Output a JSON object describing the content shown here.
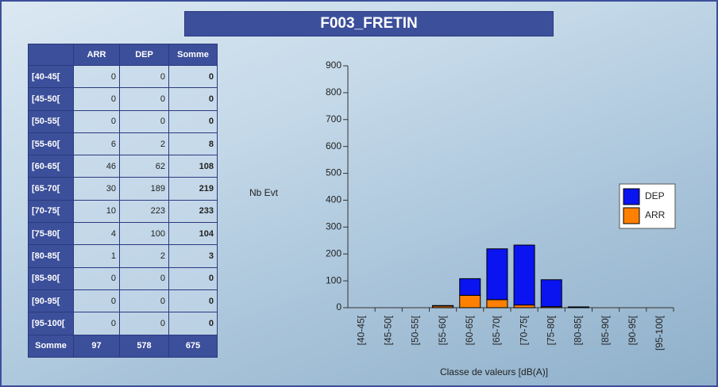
{
  "title": "F003_FRETIN",
  "table": {
    "columns": [
      "ARR",
      "DEP",
      "Somme"
    ],
    "rows": [
      {
        "label": "[40-45[",
        "values": [
          0,
          0,
          0
        ]
      },
      {
        "label": "[45-50[",
        "values": [
          0,
          0,
          0
        ]
      },
      {
        "label": "[50-55[",
        "values": [
          0,
          0,
          0
        ]
      },
      {
        "label": "[55-60[",
        "values": [
          6,
          2,
          8
        ]
      },
      {
        "label": "[60-65[",
        "values": [
          46,
          62,
          108
        ]
      },
      {
        "label": "[65-70[",
        "values": [
          30,
          189,
          219
        ]
      },
      {
        "label": "[70-75[",
        "values": [
          10,
          223,
          233
        ]
      },
      {
        "label": "[75-80[",
        "values": [
          4,
          100,
          104
        ]
      },
      {
        "label": "[80-85[",
        "values": [
          1,
          2,
          3
        ]
      },
      {
        "label": "[85-90[",
        "values": [
          0,
          0,
          0
        ]
      },
      {
        "label": "[90-95[",
        "values": [
          0,
          0,
          0
        ]
      },
      {
        "label": "[95-100[",
        "values": [
          0,
          0,
          0
        ]
      }
    ],
    "total": {
      "label": "Somme",
      "values": [
        97,
        578,
        675
      ]
    }
  },
  "chart_data": {
    "type": "stacked_bar",
    "y_label": "Nb Evt",
    "x_label": "Classe de valeurs [dB(A)]",
    "categories": [
      "[40-45[",
      "[45-50[",
      "[50-55[",
      "[55-60[",
      "[60-65[",
      "[65-70[",
      "[70-75[",
      "[75-80[",
      "[80-85[",
      "[85-90[",
      "[90-95[",
      "[95-100["
    ],
    "series": [
      {
        "name": "ARR",
        "color": "#ff8000",
        "values": [
          0,
          0,
          0,
          6,
          46,
          30,
          10,
          4,
          1,
          0,
          0,
          0
        ]
      },
      {
        "name": "DEP",
        "color": "#0a14f0",
        "values": [
          0,
          0,
          0,
          2,
          62,
          189,
          223,
          100,
          2,
          0,
          0,
          0
        ]
      }
    ],
    "ylim": [
      0,
      900
    ],
    "yticks": [
      0,
      100,
      200,
      300,
      400,
      500,
      600,
      700,
      800,
      900
    ],
    "grid": false,
    "legend": "right"
  }
}
